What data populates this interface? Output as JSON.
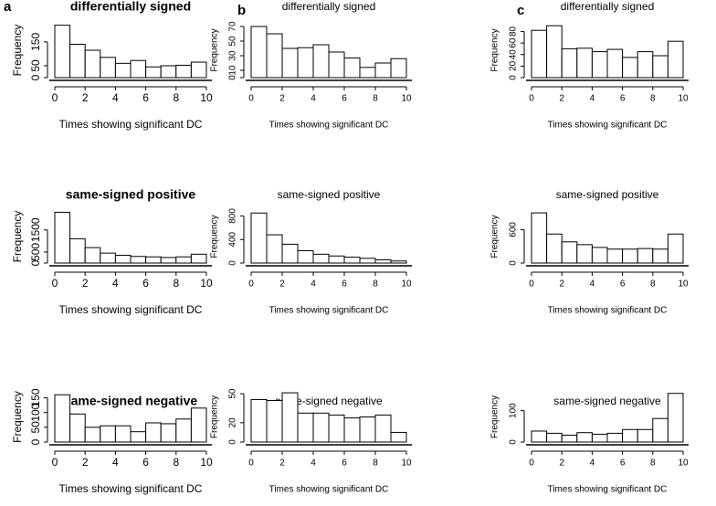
{
  "panels": [
    "a",
    "b",
    "c"
  ],
  "chart_data": [
    {
      "type": "histogram",
      "title": "differentially signed",
      "xlabel": "Times showing significant DC",
      "ylabel": "Frequency",
      "bins": [
        0,
        1,
        2,
        3,
        4,
        5,
        6,
        7,
        8,
        9,
        10
      ],
      "values": [
        220,
        140,
        115,
        85,
        60,
        72,
        45,
        50,
        52,
        65
      ],
      "xlim": [
        0,
        10
      ],
      "xticks": [
        0,
        2,
        4,
        6,
        8,
        10
      ],
      "ylim": [
        0,
        230
      ],
      "yticks": [
        0,
        50,
        150
      ]
    },
    {
      "type": "histogram",
      "title": "same-signed positive",
      "xlabel": "Times showing significant DC",
      "ylabel": "Frequency",
      "bins": [
        0,
        1,
        2,
        3,
        4,
        5,
        6,
        7,
        8,
        9,
        10
      ],
      "values": [
        2300,
        1100,
        700,
        450,
        350,
        300,
        280,
        250,
        280,
        400
      ],
      "xlim": [
        0,
        10
      ],
      "xticks": [
        0,
        2,
        4,
        6,
        8,
        10
      ],
      "ylim": [
        0,
        2400
      ],
      "yticks": [
        0,
        500,
        1500
      ]
    },
    {
      "type": "histogram",
      "title": "same-signed negative",
      "xlabel": "Times showing significant DC",
      "ylabel": "Frequency",
      "bins": [
        0,
        1,
        2,
        3,
        4,
        5,
        6,
        7,
        8,
        9,
        10
      ],
      "values": [
        160,
        95,
        50,
        55,
        55,
        35,
        65,
        62,
        78,
        115
      ],
      "xlim": [
        0,
        10
      ],
      "xticks": [
        0,
        2,
        4,
        6,
        8,
        10
      ],
      "ylim": [
        0,
        170
      ],
      "yticks": [
        0,
        50,
        100,
        150
      ]
    },
    {
      "type": "histogram",
      "title": "differentially signed",
      "xlabel": "Times showing significant DC",
      "ylabel": "Frequency",
      "bins": [
        0,
        1,
        2,
        3,
        4,
        5,
        6,
        7,
        8,
        9,
        10
      ],
      "values": [
        70,
        60,
        40,
        41,
        45,
        35,
        27,
        14,
        20,
        26
      ],
      "xlim": [
        0,
        10
      ],
      "xticks": [
        0,
        2,
        4,
        6,
        8,
        10
      ],
      "ylim": [
        0,
        75
      ],
      "yticks": [
        0,
        10,
        30,
        50,
        70
      ]
    },
    {
      "type": "histogram",
      "title": "same-signed positive",
      "xlabel": "Times showing significant DC",
      "ylabel": "Frequency",
      "bins": [
        0,
        1,
        2,
        3,
        4,
        5,
        6,
        7,
        8,
        9,
        10
      ],
      "values": [
        850,
        480,
        320,
        210,
        150,
        120,
        100,
        80,
        55,
        35
      ],
      "xlim": [
        0,
        10
      ],
      "xticks": [
        0,
        2,
        4,
        6,
        8,
        10
      ],
      "ylim": [
        0,
        900
      ],
      "yticks": [
        0,
        400,
        800
      ]
    },
    {
      "type": "histogram",
      "title": "same-signed negative",
      "xlabel": "Times showing significant DC",
      "ylabel": "Frequency",
      "bins": [
        0,
        1,
        2,
        3,
        4,
        5,
        6,
        7,
        8,
        9,
        10
      ],
      "values": [
        44,
        43,
        51,
        30,
        30,
        28,
        25,
        26,
        28,
        10
      ],
      "xlim": [
        0,
        10
      ],
      "xticks": [
        0,
        2,
        4,
        6,
        8,
        10
      ],
      "ylim": [
        0,
        52
      ],
      "yticks": [
        0,
        20,
        50
      ]
    },
    {
      "type": "histogram",
      "title": "differentially signed",
      "xlabel": "Times showing significant DC",
      "ylabel": "Frequency",
      "bins": [
        0,
        1,
        2,
        3,
        4,
        5,
        6,
        7,
        8,
        9,
        10
      ],
      "values": [
        82,
        90,
        50,
        51,
        45,
        49,
        35,
        45,
        38,
        63
      ],
      "xlim": [
        0,
        10
      ],
      "xticks": [
        0,
        2,
        4,
        6,
        8,
        10
      ],
      "ylim": [
        0,
        95
      ],
      "yticks": [
        0,
        20,
        40,
        60,
        80
      ]
    },
    {
      "type": "histogram",
      "title": "same-signed positive",
      "xlabel": "Times showing significant DC",
      "ylabel": "Frequency",
      "bins": [
        0,
        1,
        2,
        3,
        4,
        5,
        6,
        7,
        8,
        9,
        10
      ],
      "values": [
        900,
        520,
        380,
        330,
        280,
        250,
        250,
        260,
        250,
        520
      ],
      "xlim": [
        0,
        10
      ],
      "xticks": [
        0,
        2,
        4,
        6,
        8,
        10
      ],
      "ylim": [
        0,
        950
      ],
      "yticks": [
        0,
        600
      ]
    },
    {
      "type": "histogram",
      "title": "same-signed negative",
      "xlabel": "Times showing significant DC",
      "ylabel": "Frequency",
      "bins": [
        0,
        1,
        2,
        3,
        4,
        5,
        6,
        7,
        8,
        9,
        10
      ],
      "values": [
        35,
        28,
        22,
        30,
        25,
        28,
        40,
        40,
        75,
        155
      ],
      "xlim": [
        0,
        10
      ],
      "xticks": [
        0,
        2,
        4,
        6,
        8,
        10
      ],
      "ylim": [
        0,
        160
      ],
      "yticks": [
        0,
        100
      ]
    }
  ]
}
